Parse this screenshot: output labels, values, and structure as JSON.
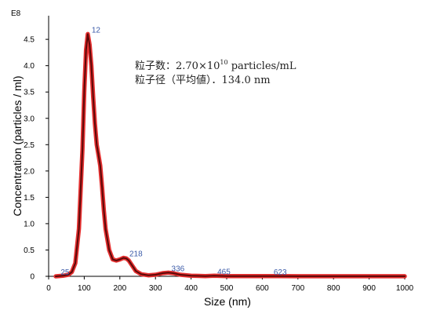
{
  "chart_data": {
    "type": "line",
    "xlabel": "Size (nm)",
    "ylabel": "Concentration (particles / ml)",
    "y_multiplier_label": "E8",
    "xlim": [
      0,
      1000
    ],
    "ylim": [
      0,
      4.8
    ],
    "x_ticks": [
      0,
      100,
      200,
      300,
      400,
      500,
      600,
      700,
      800,
      900,
      1000
    ],
    "y_ticks": [
      0,
      0.5,
      1.0,
      1.5,
      2.0,
      2.5,
      3.0,
      3.5,
      4.0,
      4.5
    ],
    "y_tick_labels": [
      "0",
      "0.5",
      "1.0",
      "1.5",
      "2.0",
      "2.5",
      "3.0",
      "3.5",
      "4.0",
      "4.5"
    ],
    "grid": false,
    "series": [
      {
        "color": "#b01010",
        "x": [
          20,
          40,
          55,
          65,
          75,
          85,
          95,
          100,
          105,
          110,
          115,
          120,
          125,
          130,
          135,
          140,
          145,
          150,
          155,
          160,
          170,
          180,
          190,
          200,
          210,
          218,
          225,
          235,
          245,
          260,
          280,
          300,
          320,
          336,
          350,
          370,
          400,
          440,
          465,
          500,
          550,
          600,
          623,
          650,
          700,
          800,
          900,
          1000
        ],
        "y": [
          0.0,
          0.01,
          0.03,
          0.08,
          0.25,
          0.9,
          2.4,
          3.5,
          4.3,
          4.6,
          4.4,
          4.0,
          3.4,
          2.9,
          2.5,
          2.3,
          2.1,
          1.7,
          1.25,
          0.9,
          0.5,
          0.32,
          0.3,
          0.32,
          0.35,
          0.34,
          0.3,
          0.2,
          0.1,
          0.04,
          0.02,
          0.03,
          0.06,
          0.07,
          0.06,
          0.03,
          0.01,
          0.005,
          0.01,
          0.005,
          0.003,
          0.003,
          0.003,
          0.003,
          0.002,
          0.002,
          0.002,
          0.001
        ]
      }
    ],
    "peak_labels": [
      {
        "label": "25",
        "x": 25,
        "y": 0.0
      },
      {
        "label": "12",
        "x": 112,
        "y": 4.6
      },
      {
        "label": "218",
        "x": 218,
        "y": 0.35
      },
      {
        "label": "336",
        "x": 336,
        "y": 0.07
      },
      {
        "label": "465",
        "x": 465,
        "y": 0.01
      },
      {
        "label": "623",
        "x": 623,
        "y": 0.003
      }
    ]
  },
  "annotation": {
    "line1_prefix": "粒子数：2.70×10",
    "line1_sup": "10",
    "line1_suffix": " particles/mL",
    "line2": "粒子径（平均値）．134.0 nm"
  }
}
